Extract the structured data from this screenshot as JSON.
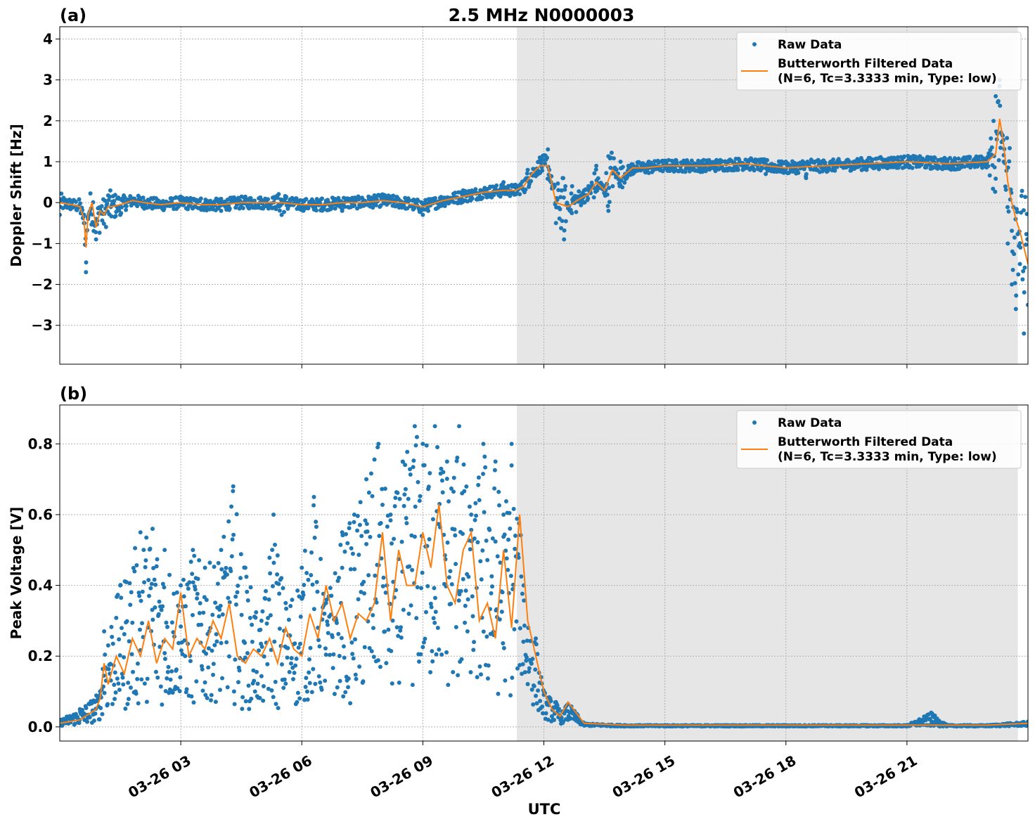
{
  "figure": {
    "title": "2.5 MHz N0000003",
    "xlabel": "UTC"
  },
  "colors": {
    "raw": "#1f77b4",
    "filtered": "#ff7f0e",
    "shade": "#e6e6e6",
    "grid": "#b0b0b0"
  },
  "chart_data": [
    {
      "type": "scatter",
      "panel_label": "(a)",
      "ylabel": "Doppler Shift [Hz]",
      "x_unit": "hours UTC on 03-26",
      "xlim": [
        0,
        24
      ],
      "ylim": [
        -3.95,
        4.3
      ],
      "yticks": [
        -3,
        -2,
        -1,
        0,
        1,
        2,
        3,
        4
      ],
      "ytick_labels": [
        "−3",
        "−2",
        "−1",
        "0",
        "1",
        "2",
        "3",
        "4"
      ],
      "xticks": [
        3,
        6,
        9,
        12,
        15,
        18,
        21
      ],
      "shaded_x": [
        11.33,
        23.75
      ],
      "grid": true,
      "legend": {
        "placement": "upper right",
        "entries": [
          {
            "label": "Raw Data",
            "marker": "dot"
          },
          {
            "label": "Butterworth Filtered Data",
            "label2": "(N=6, Tc=3.3333 min, Type: low)",
            "marker": "line"
          }
        ]
      },
      "series": [
        {
          "name": "Butterworth Filtered Data",
          "x": [
            0,
            0.3,
            0.5,
            0.6,
            0.65,
            0.7,
            0.8,
            0.9,
            1.0,
            1.1,
            1.2,
            1.3,
            1.5,
            1.8,
            2.1,
            2.5,
            3.0,
            3.5,
            4.0,
            4.5,
            5.0,
            5.5,
            6.0,
            6.5,
            7.0,
            7.5,
            8.0,
            8.5,
            9.0,
            9.5,
            10.0,
            10.5,
            11.0,
            11.3,
            11.5,
            11.7,
            11.9,
            12.1,
            12.3,
            12.6,
            12.9,
            13.1,
            13.3,
            13.5,
            13.7,
            13.9,
            14.2,
            14.5,
            15.0,
            16.0,
            17.0,
            18.0,
            19.0,
            20.0,
            21.0,
            22.0,
            23.0,
            23.2,
            23.3,
            23.4,
            23.5,
            23.6,
            23.7,
            23.8,
            23.9,
            24.0
          ],
          "values": [
            0,
            -0.05,
            -0.1,
            -0.4,
            -1.1,
            -0.3,
            0.0,
            -0.6,
            -0.2,
            -0.3,
            -0.1,
            -0.1,
            -0.05,
            0.05,
            0.0,
            -0.05,
            0.0,
            -0.05,
            -0.05,
            0.0,
            0.0,
            0.0,
            -0.05,
            -0.05,
            0.0,
            0.0,
            0.05,
            0.0,
            -0.1,
            0.05,
            0.15,
            0.25,
            0.3,
            0.3,
            0.4,
            0.7,
            0.9,
            0.9,
            0.0,
            -0.1,
            0.1,
            0.2,
            0.5,
            0.3,
            0.8,
            0.6,
            0.85,
            0.85,
            0.9,
            0.9,
            0.95,
            0.85,
            0.9,
            0.95,
            1.0,
            0.95,
            1.0,
            1.2,
            2.05,
            1.4,
            0.5,
            0.0,
            -0.4,
            -0.7,
            -1.1,
            -1.5
          ]
        },
        {
          "name": "Raw Data",
          "x": [
            0.0,
            0.3,
            0.6,
            0.65,
            0.7,
            0.9,
            1.5,
            2.0,
            2.5,
            3.0,
            3.5,
            4.0,
            4.5,
            5.0,
            5.5,
            6.0,
            6.5,
            7.0,
            7.5,
            8.0,
            8.5,
            9.0,
            9.5,
            10.0,
            10.5,
            11.0,
            11.3,
            11.6,
            11.9,
            12.1,
            12.3,
            12.5,
            12.7,
            13.0,
            13.3,
            13.6,
            13.9,
            14.2,
            14.6,
            15.0,
            15.5,
            16.0,
            16.5,
            17.0,
            17.5,
            18.0,
            18.5,
            19.0,
            19.5,
            20.0,
            20.5,
            21.0,
            21.5,
            22.0,
            22.5,
            23.0,
            23.2,
            23.3,
            23.4,
            23.5,
            23.6,
            23.7,
            23.8,
            23.9,
            24.0
          ],
          "values": [
            -0.3,
            0.0,
            -0.5,
            -1.7,
            -0.4,
            -0.9,
            -0.3,
            0.05,
            -0.1,
            -0.05,
            0.1,
            -0.2,
            0.0,
            0.05,
            -0.3,
            -0.05,
            0.1,
            -0.2,
            0.0,
            0.2,
            -0.1,
            -0.3,
            0.0,
            0.3,
            0.3,
            0.5,
            0.2,
            0.8,
            1.1,
            1.3,
            -0.5,
            -0.9,
            0.4,
            0.3,
            0.9,
            -0.2,
            1.0,
            0.7,
            1.0,
            0.85,
            1.0,
            0.9,
            0.8,
            1.05,
            0.7,
            1.0,
            0.6,
            0.8,
            1.0,
            0.8,
            1.0,
            1.0,
            1.05,
            1.0,
            0.9,
            1.1,
            2.6,
            3.0,
            1.0,
            -1.0,
            -2.0,
            -2.6,
            -1.5,
            -3.2,
            -2.5
          ]
        }
      ]
    },
    {
      "type": "scatter",
      "panel_label": "(b)",
      "ylabel": "Peak Voltage [V]",
      "x_unit": "hours UTC on 03-26",
      "xlim": [
        0,
        24
      ],
      "ylim": [
        -0.04,
        0.91
      ],
      "yticks": [
        0.0,
        0.2,
        0.4,
        0.6,
        0.8
      ],
      "ytick_labels": [
        "0.0",
        "0.2",
        "0.4",
        "0.6",
        "0.8"
      ],
      "xticks": [
        3,
        6,
        9,
        12,
        15,
        18,
        21
      ],
      "xtick_labels": [
        "03-26 03",
        "03-26 06",
        "03-26 09",
        "03-26 12",
        "03-26 15",
        "03-26 18",
        "03-26 21"
      ],
      "shaded_x": [
        11.33,
        23.75
      ],
      "grid": true,
      "legend": {
        "placement": "upper right",
        "entries": [
          {
            "label": "Raw Data",
            "marker": "dot"
          },
          {
            "label": "Butterworth Filtered Data",
            "label2": "(N=6, Tc=3.3333 min, Type: low)",
            "marker": "line"
          }
        ]
      },
      "series": [
        {
          "name": "Butterworth Filtered Data",
          "x": [
            0,
            0.5,
            0.9,
            1.0,
            1.1,
            1.2,
            1.4,
            1.6,
            1.8,
            2.0,
            2.2,
            2.4,
            2.6,
            2.8,
            3.0,
            3.2,
            3.4,
            3.6,
            3.8,
            4.0,
            4.2,
            4.4,
            4.6,
            4.8,
            5.0,
            5.2,
            5.4,
            5.6,
            5.8,
            6.0,
            6.2,
            6.4,
            6.6,
            6.8,
            7.0,
            7.2,
            7.4,
            7.6,
            7.8,
            8.0,
            8.2,
            8.4,
            8.6,
            8.8,
            9.0,
            9.2,
            9.4,
            9.6,
            9.8,
            10.0,
            10.2,
            10.4,
            10.6,
            10.8,
            11.0,
            11.2,
            11.4,
            11.6,
            11.8,
            12.0,
            12.2,
            12.4,
            12.6,
            13.0,
            14.0,
            15.0,
            16.0,
            17.0,
            18.0,
            19.0,
            20.0,
            21.0,
            22.0,
            23.0,
            24.0
          ],
          "values": [
            0.01,
            0.02,
            0.05,
            0.08,
            0.18,
            0.12,
            0.2,
            0.15,
            0.25,
            0.2,
            0.3,
            0.18,
            0.25,
            0.22,
            0.38,
            0.2,
            0.25,
            0.22,
            0.3,
            0.25,
            0.35,
            0.2,
            0.18,
            0.22,
            0.2,
            0.25,
            0.18,
            0.28,
            0.22,
            0.2,
            0.32,
            0.25,
            0.4,
            0.3,
            0.35,
            0.25,
            0.32,
            0.3,
            0.35,
            0.55,
            0.3,
            0.5,
            0.4,
            0.4,
            0.55,
            0.45,
            0.63,
            0.4,
            0.35,
            0.5,
            0.55,
            0.3,
            0.35,
            0.25,
            0.5,
            0.28,
            0.6,
            0.3,
            0.2,
            0.1,
            0.05,
            0.03,
            0.07,
            0.01,
            0.005,
            0.005,
            0.005,
            0.005,
            0.005,
            0.005,
            0.005,
            0.005,
            0.005,
            0.005,
            0.01
          ]
        },
        {
          "name": "Raw Data",
          "x": [
            0.0,
            0.5,
            1.0,
            1.1,
            1.5,
            2.0,
            2.3,
            2.6,
            3.0,
            3.3,
            3.6,
            4.0,
            4.3,
            4.6,
            5.0,
            5.3,
            5.6,
            6.0,
            6.3,
            6.6,
            7.0,
            7.3,
            7.6,
            7.9,
            8.2,
            8.5,
            8.8,
            9.0,
            9.3,
            9.6,
            9.9,
            10.2,
            10.5,
            10.8,
            11.0,
            11.2,
            11.5,
            11.8,
            12.0,
            12.3,
            12.6,
            13.0,
            14.0,
            15.0,
            16.0,
            17.0,
            18.0,
            19.0,
            20.0,
            21.0,
            21.6,
            22.0,
            22.5,
            23.0,
            23.5,
            24.0
          ],
          "values": [
            0.02,
            0.05,
            0.1,
            0.27,
            0.4,
            0.55,
            0.56,
            0.5,
            0.4,
            0.5,
            0.45,
            0.5,
            0.68,
            0.45,
            0.3,
            0.6,
            0.35,
            0.45,
            0.65,
            0.35,
            0.55,
            0.6,
            0.7,
            0.8,
            0.6,
            0.75,
            0.85,
            0.8,
            0.85,
            0.75,
            0.85,
            0.6,
            0.8,
            0.75,
            0.6,
            0.8,
            0.4,
            0.25,
            0.1,
            0.07,
            0.02,
            0.01,
            0.005,
            0.005,
            0.005,
            0.005,
            0.005,
            0.005,
            0.005,
            0.005,
            0.04,
            0.005,
            0.005,
            0.005,
            0.01,
            0.015
          ]
        }
      ]
    }
  ]
}
